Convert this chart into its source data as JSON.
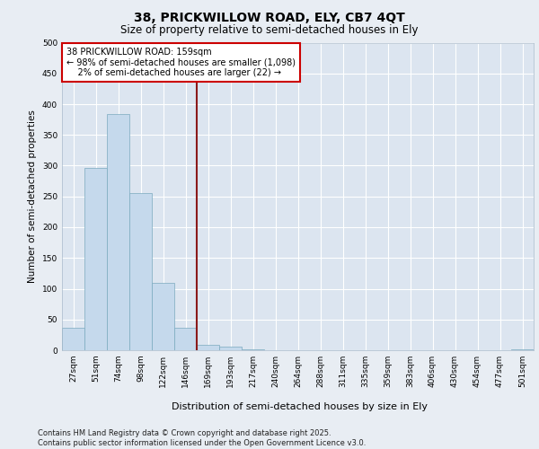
{
  "title": "38, PRICKWILLOW ROAD, ELY, CB7 4QT",
  "subtitle": "Size of property relative to semi-detached houses in Ely",
  "xlabel": "Distribution of semi-detached houses by size in Ely",
  "ylabel": "Number of semi-detached properties",
  "categories": [
    "27sqm",
    "51sqm",
    "74sqm",
    "98sqm",
    "122sqm",
    "146sqm",
    "169sqm",
    "193sqm",
    "217sqm",
    "240sqm",
    "264sqm",
    "288sqm",
    "311sqm",
    "335sqm",
    "359sqm",
    "383sqm",
    "406sqm",
    "430sqm",
    "454sqm",
    "477sqm",
    "501sqm"
  ],
  "values": [
    37,
    296,
    384,
    255,
    109,
    37,
    9,
    6,
    1,
    0,
    0,
    0,
    0,
    0,
    0,
    0,
    0,
    0,
    0,
    0,
    2
  ],
  "bar_color": "#c5d9ec",
  "bar_edge_color": "#7aaabf",
  "vline_color": "#8b1a1a",
  "annotation_text": "38 PRICKWILLOW ROAD: 159sqm\n← 98% of semi-detached houses are smaller (1,098)\n    2% of semi-detached houses are larger (22) →",
  "annotation_box_color": "#ffffff",
  "annotation_box_edge": "#cc0000",
  "ylim": [
    0,
    500
  ],
  "yticks": [
    0,
    50,
    100,
    150,
    200,
    250,
    300,
    350,
    400,
    450,
    500
  ],
  "background_color": "#e8edf3",
  "plot_bg_color": "#dce5f0",
  "grid_color": "#ffffff",
  "footer_text": "Contains HM Land Registry data © Crown copyright and database right 2025.\nContains public sector information licensed under the Open Government Licence v3.0.",
  "title_fontsize": 10,
  "subtitle_fontsize": 8.5,
  "xlabel_fontsize": 8,
  "ylabel_fontsize": 7.5,
  "tick_fontsize": 6.5,
  "annotation_fontsize": 7,
  "footer_fontsize": 6
}
